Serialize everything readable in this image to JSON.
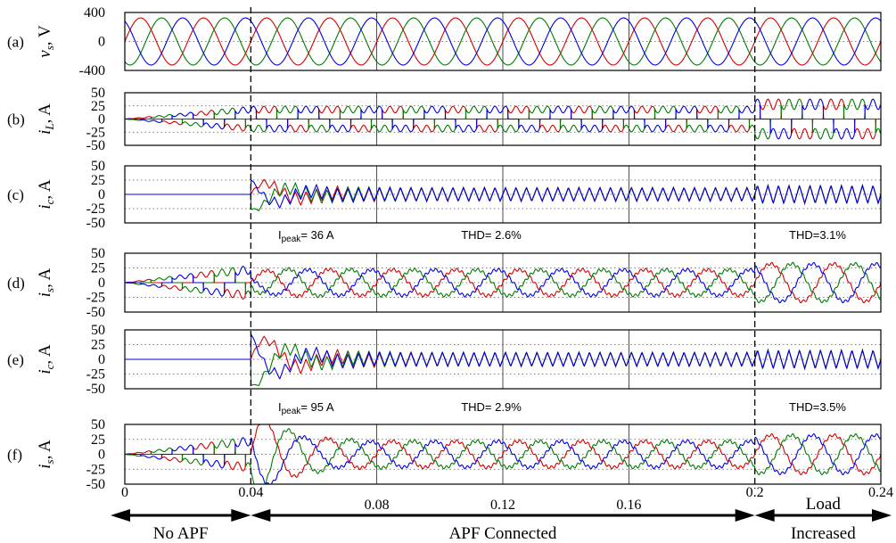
{
  "chart_data": {
    "type": "line",
    "x_unit": "s",
    "x_range": [
      0,
      0.24
    ],
    "x_ticks": [
      {
        "value": 0,
        "label": "0"
      },
      {
        "value": 0.04,
        "label": "0.04"
      },
      {
        "value": 0.08,
        "label": "0.08"
      },
      {
        "value": 0.12,
        "label": "0.12"
      },
      {
        "value": 0.16,
        "label": "0.16"
      },
      {
        "value": 0.2,
        "label": "0.2"
      },
      {
        "value": 0.24,
        "label": "0.24"
      }
    ],
    "event_markers": [
      0.04,
      0.2
    ],
    "fundamental_frequency_hz": 50,
    "colors": {
      "phase_a": "#d40000",
      "phase_b": "#007a00",
      "phase_c": "#0000e0"
    },
    "panels": [
      {
        "tag": "(a)",
        "ysym": "v",
        "ysub": "s",
        "yunit": ", V",
        "ylim": [
          -400,
          400
        ],
        "yticks": [
          "400",
          "0",
          "-400"
        ],
        "ytick_values": [
          400,
          0,
          -400
        ],
        "kind": "voltage",
        "amplitude": 325
      },
      {
        "tag": "(b)",
        "ysym": "i",
        "ysub": "L",
        "yunit": ", A",
        "ylim": [
          -50,
          50
        ],
        "yticks": [
          "50",
          "25",
          "0",
          "-25",
          "-50"
        ],
        "ytick_values": [
          50,
          25,
          0,
          -25,
          -50
        ],
        "kind": "load_current",
        "amplitude_before_0_2": 18,
        "amplitude_after_0_2": 28
      },
      {
        "tag": "(c)",
        "ysym": "i",
        "ysub": "c",
        "yunit": ", A",
        "ylim": [
          -50,
          50
        ],
        "yticks": [
          "50",
          "25",
          "0",
          "-25",
          "-50"
        ],
        "ytick_values": [
          50,
          25,
          0,
          -25,
          -50
        ],
        "kind": "compensator_current",
        "transient_peak": 30,
        "ripple_amplitude": 12
      },
      {
        "tag": "(d)",
        "ysym": "i",
        "ysub": "s",
        "yunit": ", A",
        "ylim": [
          -50,
          50
        ],
        "yticks": [
          "50",
          "25",
          "0",
          "-25",
          "-50"
        ],
        "ytick_values": [
          50,
          25,
          0,
          -25,
          -50
        ],
        "kind": "source_current",
        "transient_peak": 36,
        "amplitude_before_0_2": 22,
        "amplitude_after_0_2": 32
      },
      {
        "tag": "(e)",
        "ysym": "i",
        "ysub": "c",
        "yunit": ", A",
        "ylim": [
          -50,
          50
        ],
        "yticks": [
          "50",
          "25",
          "0",
          "-25",
          "-50"
        ],
        "ytick_values": [
          50,
          25,
          0,
          -25,
          -50
        ],
        "kind": "compensator_current",
        "transient_peak": 50,
        "ripple_amplitude": 12
      },
      {
        "tag": "(f)",
        "ysym": "i",
        "ysub": "s",
        "yunit": ", A",
        "ylim": [
          -50,
          50
        ],
        "yticks": [
          "50",
          "25",
          "0",
          "-25",
          "-50"
        ],
        "ytick_values": [
          50,
          25,
          0,
          -25,
          -50
        ],
        "kind": "source_current",
        "transient_peak": 95,
        "amplitude_before_0_2": 22,
        "amplitude_after_0_2": 32
      }
    ],
    "annotations": [
      {
        "after_panel": 2,
        "ipeak_main": "I",
        "ipeak_sub": "peak",
        "ipeak_value": "= 36 A",
        "thd_1": "THD= 2.6%",
        "thd_2": "THD=3.1%"
      },
      {
        "after_panel": 4,
        "ipeak_main": "I",
        "ipeak_sub": "peak",
        "ipeak_value": "= 95 A",
        "thd_1": "THD= 2.9%",
        "thd_2": "THD=3.5%"
      }
    ],
    "phases": [
      {
        "label": "No APF",
        "from": 0,
        "to": 0.04
      },
      {
        "label": "APF Connected",
        "from": 0.04,
        "to": 0.2
      },
      {
        "label": "Load Increased",
        "label_line1": "Load",
        "label_line2": "Increased",
        "from": 0.2,
        "to": 0.24
      }
    ]
  }
}
